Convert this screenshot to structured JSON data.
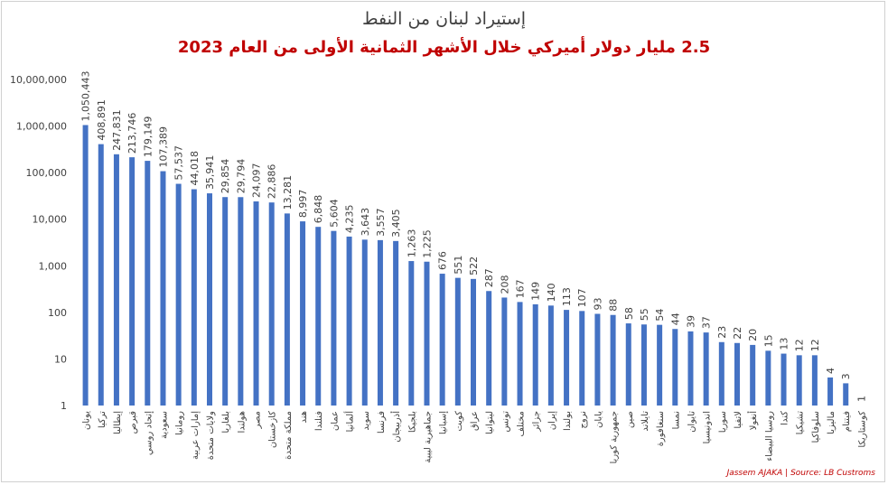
{
  "chart_data": {
    "type": "bar",
    "title": "إستيراد لبنان من النفط",
    "subtitle": "2.5 مليار دولار أميركي خلال الأشهر الثمانية الأولى من العام 2023",
    "xlabel": "",
    "ylabel": "",
    "yscale": "log",
    "ylim": [
      1,
      10000000
    ],
    "ytick_labels": [
      "1",
      "10",
      "100",
      "1,000",
      "10,000",
      "100,000",
      "1,000,000",
      "10,000,000"
    ],
    "grid": false,
    "bar_color": "#4472c4",
    "categories": [
      "يونان",
      "تركيا",
      "إيطاليا",
      "قبرص",
      "إتحاد روسي",
      "سعودية",
      "رومانيا",
      "إمارات عربية",
      "ولايات متحدة",
      "بلغاريا",
      "هولندا",
      "مصر",
      "كازخستان",
      "مملكة متحدة",
      "هند",
      "فنلندا",
      "عمان",
      "ألمانيا",
      "سويد",
      "فرنسا",
      "أذربيجان",
      "بلجيكا",
      "جماهيرية ليبية",
      "إسبانيا",
      "كويت",
      "عراق",
      "ليتوانيا",
      "تونس",
      "مختلف",
      "جزائر",
      "إيران",
      "بولندا",
      "نروج",
      "يابان",
      "جمهورية كوريا",
      "صين",
      "تايلاند",
      "سنغافورة",
      "نمسا",
      "تايوان",
      "اندونيسيا",
      "سوريا",
      "لاتفيا",
      "أنغولا",
      "روسيا البيضاء",
      "كندا",
      "تشيكيا",
      "سلوفاكيا",
      "ماليزيا",
      "فيتنام",
      "كوستاريكا"
    ],
    "values": [
      1050443,
      408891,
      247831,
      213746,
      179149,
      107389,
      57537,
      44018,
      35941,
      29854,
      29794,
      24097,
      22886,
      13281,
      8997,
      6848,
      5604,
      4235,
      3643,
      3557,
      3405,
      1263,
      1225,
      676,
      551,
      522,
      287,
      208,
      167,
      149,
      140,
      113,
      107,
      93,
      88,
      58,
      55,
      54,
      44,
      39,
      37,
      23,
      22,
      20,
      15,
      13,
      12,
      12,
      4,
      3,
      1
    ],
    "value_labels": [
      "1,050,443",
      "408,891",
      "247,831",
      "213,746",
      "179,149",
      "107,389",
      "57,537",
      "44,018",
      "35,941",
      "29,854",
      "29,794",
      "24,097",
      "22,886",
      "13,281",
      "8,997",
      "6,848",
      "5,604",
      "4,235",
      "3,643",
      "3,557",
      "3,405",
      "1,263",
      "1,225",
      "676",
      "551",
      "522",
      "287",
      "208",
      "167",
      "149",
      "140",
      "113",
      "107",
      "93",
      "88",
      "58",
      "55",
      "54",
      "44",
      "39",
      "37",
      "23",
      "22",
      "20",
      "15",
      "13",
      "12",
      "12",
      "4",
      "3",
      "1"
    ]
  },
  "source_note": "Jassem AJAKA | Source: LB Custroms"
}
